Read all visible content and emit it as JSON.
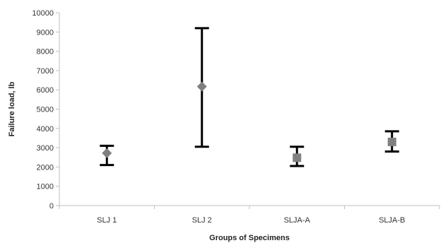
{
  "chart_data": {
    "type": "scatter",
    "title": "",
    "xlabel": "Groups of Specimens",
    "ylabel": "Failure load, lb",
    "ylim": [
      0,
      10000
    ],
    "yticks": [
      0,
      1000,
      2000,
      3000,
      4000,
      5000,
      6000,
      7000,
      8000,
      9000,
      10000
    ],
    "categories": [
      "SLJ 1",
      "SLJ 2",
      "SLJA-A",
      "SLJA-B"
    ],
    "markers": [
      "diamond",
      "diamond",
      "square",
      "square"
    ],
    "values": [
      2720,
      6170,
      2480,
      3300
    ],
    "error_low": [
      2100,
      3050,
      2050,
      2800
    ],
    "error_high": [
      3100,
      9200,
      3050,
      3850
    ],
    "grid": false,
    "legend": "none",
    "colors": {
      "marker": "#808080",
      "errorbar": "#000000",
      "axis": "#bfbfbf"
    }
  }
}
